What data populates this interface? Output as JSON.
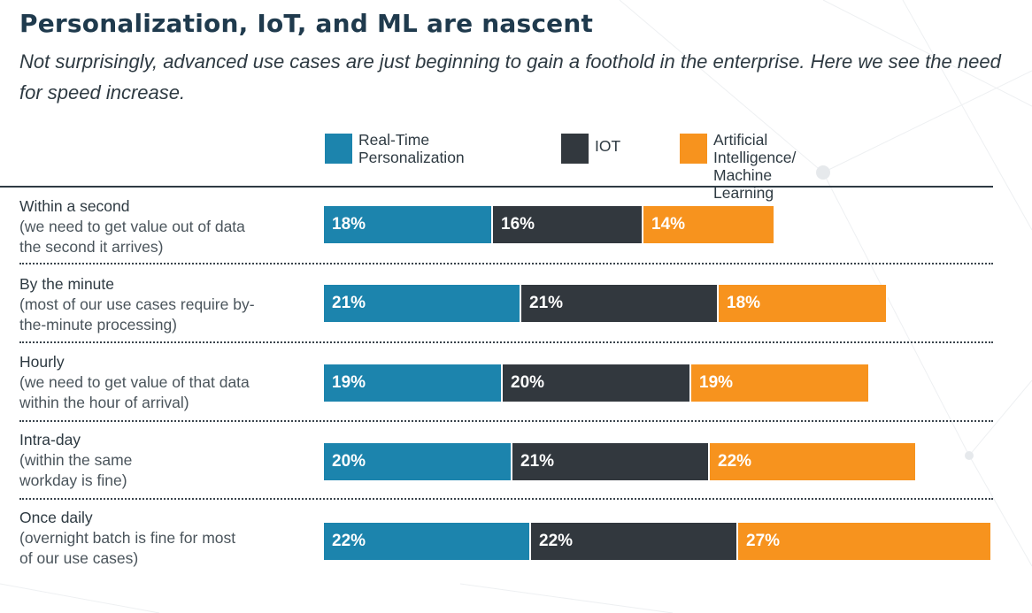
{
  "title": "Personalization, IoT, and ML are nascent",
  "subtitle": "Not surprisingly, advanced use cases are just beginning to gain a foothold in the enterprise. Here we see the need for speed increase.",
  "colors": {
    "real_time_personalization": "#1c84ad",
    "iot": "#32383e",
    "ai_ml": "#f7931e"
  },
  "chart_data": {
    "type": "bar",
    "orientation": "horizontal",
    "stacked": true,
    "title": "Personalization, IoT, and ML are nascent",
    "subtitle": "Not surprisingly, advanced use cases are just beginning to gain a foothold in the enterprise. Here we see the need for speed increase.",
    "legend_position": "top",
    "categories": [
      {
        "name": "Within a second",
        "description": "(we need to get value out of data\nthe second it arrives)"
      },
      {
        "name": "By the minute",
        "description": "(most of our use cases require by-\nthe-minute processing)"
      },
      {
        "name": "Hourly",
        "description": "(we need to get value of that data\nwithin the hour of arrival)"
      },
      {
        "name": "Intra-day",
        "description": "(within the same\nworkday  is fine)"
      },
      {
        "name": "Once daily",
        "description": "(overnight batch is fine for most\nof our use cases)"
      }
    ],
    "series": [
      {
        "name": "Real-Time\nPersonalization",
        "color": "#1c84ad",
        "values": [
          18,
          21,
          19,
          20,
          22
        ],
        "labels": [
          "18%",
          "21%",
          "19%",
          "20%",
          "22%"
        ]
      },
      {
        "name": "IOT",
        "color": "#32383e",
        "values": [
          16,
          21,
          20,
          21,
          22
        ],
        "labels": [
          "16%",
          "21%",
          "20%",
          "21%",
          "22%"
        ]
      },
      {
        "name": "Artificial Intelligence/\nMachine Learning",
        "color": "#f7931e",
        "values": [
          14,
          18,
          19,
          22,
          27
        ],
        "labels": [
          "14%",
          "18%",
          "19%",
          "22%",
          "27%"
        ]
      }
    ],
    "unit": "%"
  }
}
